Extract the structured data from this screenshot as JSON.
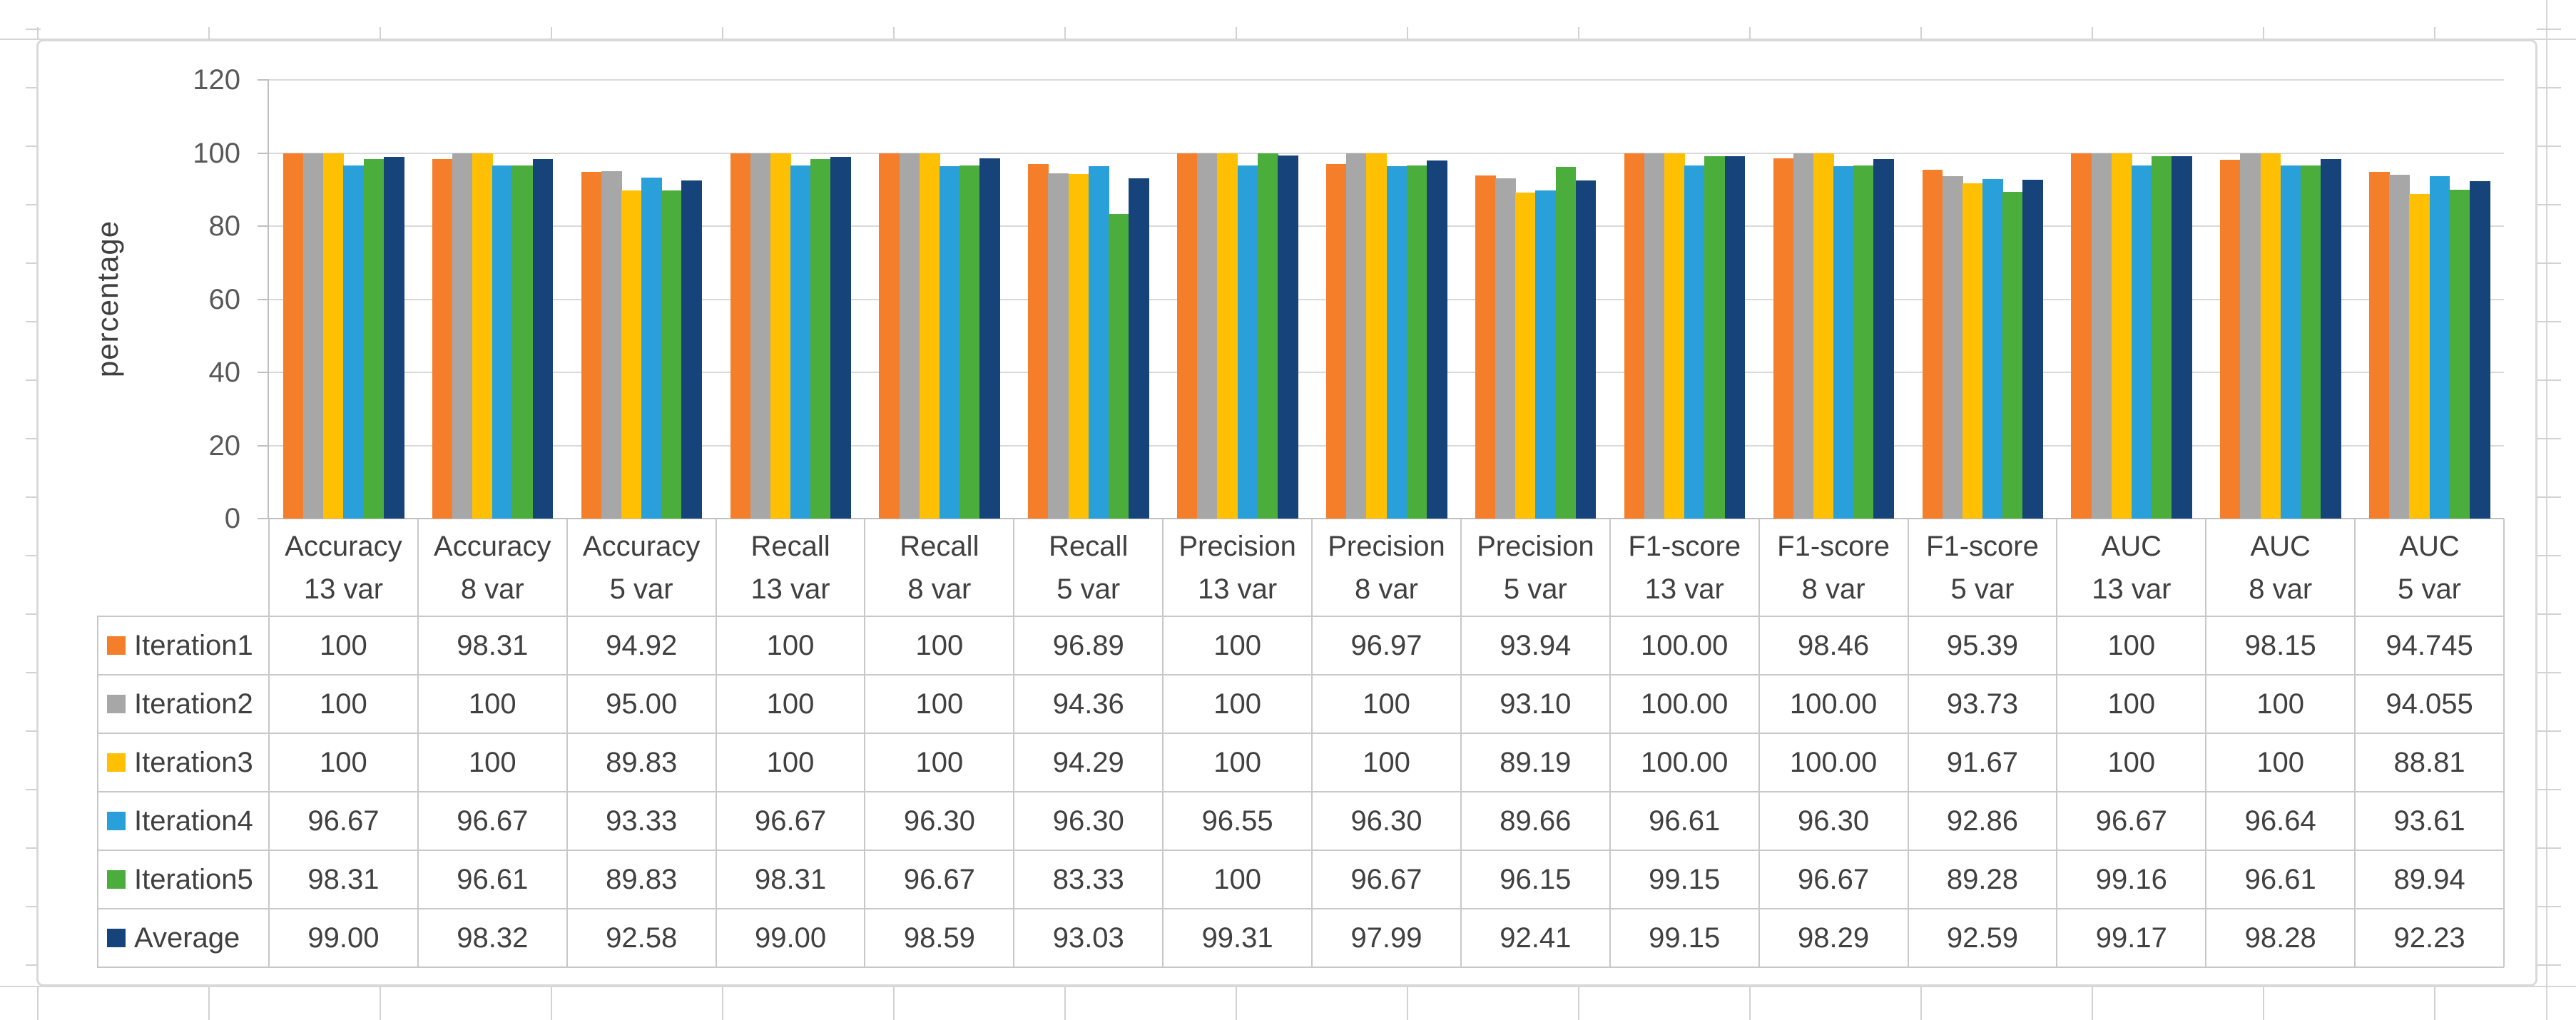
{
  "chart_data": {
    "type": "bar",
    "title": "",
    "xlabel": "",
    "ylabel": "percentage",
    "ylim": [
      0,
      120
    ],
    "yticks": [
      0,
      20,
      40,
      60,
      80,
      100,
      120
    ],
    "grid": "horizontal-major-gridlines",
    "legend_position": "data-table-first-column",
    "categories": [
      "Accuracy 13 var",
      "Accuracy 8 var",
      "Accuracy 5 var",
      "Recall 13 var",
      "Recall 8 var",
      "Recall 5 var",
      "Precision 13 var",
      "Precision 8 var",
      "Precision 5 var",
      "F1-score 13 var",
      "F1-score 8 var",
      "F1-score 5 var",
      "AUC 13 var",
      "AUC 8 var",
      "AUC 5 var"
    ],
    "category_lines": [
      {
        "line1": "Accuracy",
        "line2": "13 var"
      },
      {
        "line1": "Accuracy",
        "line2": "8 var"
      },
      {
        "line1": "Accuracy",
        "line2": "5 var"
      },
      {
        "line1": "Recall",
        "line2": "13 var"
      },
      {
        "line1": "Recall",
        "line2": "8 var"
      },
      {
        "line1": "Recall",
        "line2": "5 var"
      },
      {
        "line1": "Precision",
        "line2": "13 var"
      },
      {
        "line1": "Precision",
        "line2": "8 var"
      },
      {
        "line1": "Precision",
        "line2": "5 var"
      },
      {
        "line1": "F1-score",
        "line2": "13 var"
      },
      {
        "line1": "F1-score",
        "line2": "8 var"
      },
      {
        "line1": "F1-score",
        "line2": "5 var"
      },
      {
        "line1": "AUC",
        "line2": "13 var"
      },
      {
        "line1": "AUC",
        "line2": "8 var"
      },
      {
        "line1": "AUC",
        "line2": "5 var"
      }
    ],
    "series": [
      {
        "name": "Iteration1",
        "color": "#F57E2B",
        "values": [
          100,
          98.31,
          94.92,
          100,
          100,
          96.89,
          100,
          96.97,
          93.94,
          100,
          98.46,
          95.39,
          100,
          98.15,
          94.745
        ],
        "display": [
          "100",
          "98.31",
          "94.92",
          "100",
          "100",
          "96.89",
          "100",
          "96.97",
          "93.94",
          "100.00",
          "98.46",
          "95.39",
          "100",
          "98.15",
          "94.745"
        ]
      },
      {
        "name": "Iteration2",
        "color": "#A7A7A7",
        "values": [
          100,
          100,
          95.0,
          100,
          100,
          94.36,
          100,
          100,
          93.1,
          100,
          100,
          93.73,
          100,
          100,
          94.055
        ],
        "display": [
          "100",
          "100",
          "95.00",
          "100",
          "100",
          "94.36",
          "100",
          "100",
          "93.10",
          "100.00",
          "100.00",
          "93.73",
          "100",
          "100",
          "94.055"
        ]
      },
      {
        "name": "Iteration3",
        "color": "#FFC003",
        "values": [
          100,
          100,
          89.83,
          100,
          100,
          94.29,
          100,
          100,
          89.19,
          100,
          100,
          91.67,
          100,
          100,
          88.81
        ],
        "display": [
          "100",
          "100",
          "89.83",
          "100",
          "100",
          "94.29",
          "100",
          "100",
          "89.19",
          "100.00",
          "100.00",
          "91.67",
          "100",
          "100",
          "88.81"
        ]
      },
      {
        "name": "Iteration4",
        "color": "#29A0DA",
        "values": [
          96.67,
          96.67,
          93.33,
          96.67,
          96.3,
          96.3,
          96.55,
          96.3,
          89.66,
          96.61,
          96.3,
          92.86,
          96.67,
          96.64,
          93.61
        ],
        "display": [
          "96.67",
          "96.67",
          "93.33",
          "96.67",
          "96.30",
          "96.30",
          "96.55",
          "96.30",
          "89.66",
          "96.61",
          "96.30",
          "92.86",
          "96.67",
          "96.64",
          "93.61"
        ]
      },
      {
        "name": "Iteration5",
        "color": "#4BAE3C",
        "values": [
          98.31,
          96.61,
          89.83,
          98.31,
          96.67,
          83.33,
          100,
          96.67,
          96.15,
          99.15,
          96.67,
          89.28,
          99.16,
          96.61,
          89.94
        ],
        "display": [
          "98.31",
          "96.61",
          "89.83",
          "98.31",
          "96.67",
          "83.33",
          "100",
          "96.67",
          "96.15",
          "99.15",
          "96.67",
          "89.28",
          "99.16",
          "96.61",
          "89.94"
        ]
      },
      {
        "name": "Average",
        "color": "#17437B",
        "values": [
          99.0,
          98.32,
          92.58,
          99.0,
          98.59,
          93.03,
          99.31,
          97.99,
          92.41,
          99.15,
          98.29,
          92.59,
          99.17,
          98.28,
          92.23
        ],
        "display": [
          "99.00",
          "98.32",
          "92.58",
          "99.00",
          "98.59",
          "93.03",
          "99.31",
          "97.99",
          "92.41",
          "99.15",
          "98.29",
          "92.59",
          "99.17",
          "98.28",
          "92.23"
        ]
      }
    ]
  }
}
